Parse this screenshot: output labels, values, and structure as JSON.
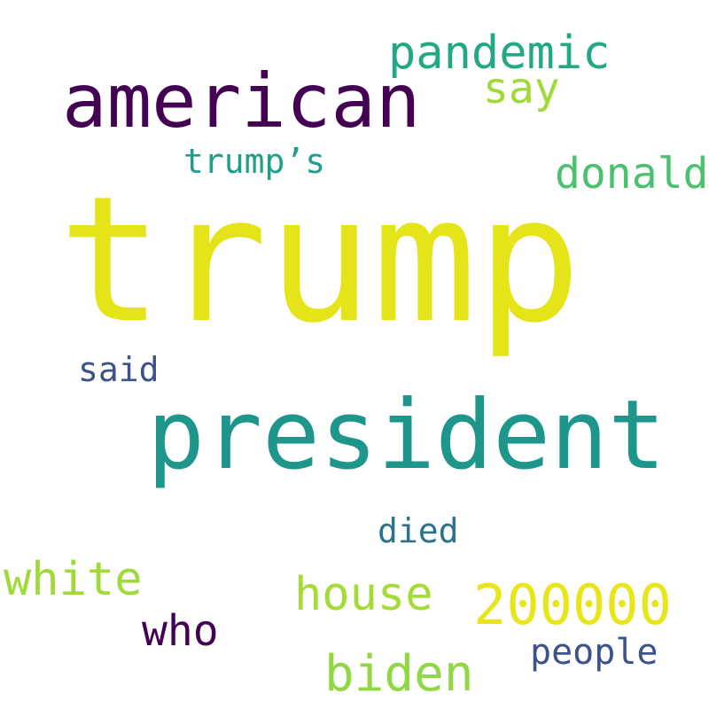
{
  "words": [
    {
      "key": "trump",
      "text": "trump",
      "color": "#e5e419"
    },
    {
      "key": "american",
      "text": "american",
      "color": "#440154"
    },
    {
      "key": "pandemic",
      "text": "pandemic",
      "color": "#22a884"
    },
    {
      "key": "say",
      "text": "say",
      "color": "#a0da39"
    },
    {
      "key": "trumps",
      "text": "trump’s",
      "color": "#1f9e89"
    },
    {
      "key": "donald",
      "text": "donald",
      "color": "#4ac16d"
    },
    {
      "key": "said",
      "text": "said",
      "color": "#3b528b"
    },
    {
      "key": "president",
      "text": "president",
      "color": "#1f968b"
    },
    {
      "key": "died",
      "text": "died",
      "color": "#2c728e"
    },
    {
      "key": "white",
      "text": "white",
      "color": "#a0da39"
    },
    {
      "key": "house",
      "text": "house",
      "color": "#a5db36"
    },
    {
      "key": "200000",
      "text": "200000",
      "color": "#e8e51a"
    },
    {
      "key": "who",
      "text": "who",
      "color": "#440154"
    },
    {
      "key": "biden",
      "text": "biden",
      "color": "#90d743"
    },
    {
      "key": "people",
      "text": "people",
      "color": "#3b528b"
    }
  ]
}
